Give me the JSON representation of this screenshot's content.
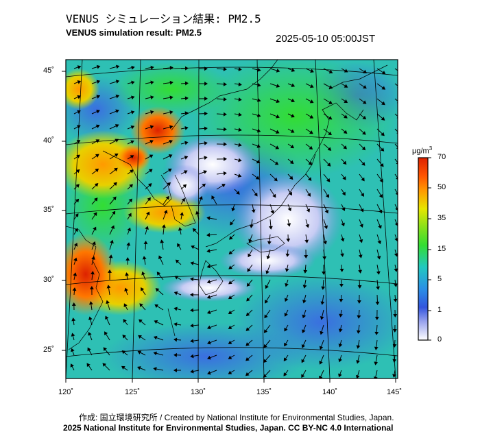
{
  "header": {
    "title_ja": "VENUS シミュレーション結果: PM2.5",
    "title_en": "VENUS simulation result: PM2.5",
    "timestamp": "2025-05-10 05:00JST"
  },
  "map": {
    "lat_labels": [
      "45˚",
      "40˚",
      "35˚",
      "30˚",
      "25˚"
    ],
    "lon_labels": [
      "120˚",
      "125˚",
      "130˚",
      "135˚",
      "140˚",
      "145˚"
    ],
    "background_color": "#2ec0b4"
  },
  "colorbar": {
    "unit": "μg/m",
    "unit_sup": "3",
    "labels": [
      "70",
      "50",
      "35",
      "15",
      "5",
      "1",
      "0"
    ],
    "colors": [
      "#dd2200",
      "#ff8800",
      "#e6e600",
      "#33dd33",
      "#22c8c0",
      "#2a8fe6",
      "#3355dd",
      "#ffffff"
    ]
  },
  "footer": {
    "credit_ja": "作成: 国立環境研究所 / Created by National Institute for Environmental Studies, Japan.",
    "credit_en": "2025 National Institute for Environmental Studies, Japan. CC BY-NC 4.0 International"
  }
}
